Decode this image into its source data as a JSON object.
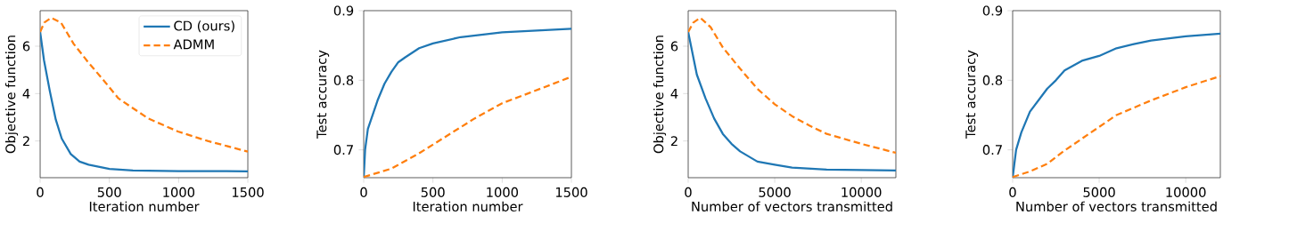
{
  "chart_data": [
    {
      "type": "line",
      "xlabel": "Iteration number",
      "ylabel": "Objective function",
      "xlim": [
        0,
        1500
      ],
      "ylim": [
        0.45,
        7.5
      ],
      "xticks": [
        0,
        500,
        1000,
        1500
      ],
      "yticks": [
        2,
        4,
        6
      ],
      "legend": "top right",
      "grid": false,
      "series": [
        {
          "name": "CD (ours)",
          "color": "#1f77b4",
          "line_style": "solid",
          "x": [
            0,
            28,
            70,
            113,
            156,
            221,
            285,
            350,
            500,
            670,
            1000,
            1500
          ],
          "values": [
            6.6,
            5.4,
            4.1,
            2.9,
            2.1,
            1.45,
            1.13,
            1.0,
            0.82,
            0.75,
            0.73,
            0.72
          ]
        },
        {
          "name": "ADMM",
          "color": "#ff7f0e",
          "line_style": "dashed",
          "x": [
            0,
            30,
            80,
            150,
            242,
            350,
            460,
            565,
            780,
            995,
            1210,
            1500
          ],
          "values": [
            6.6,
            7.0,
            7.2,
            7.0,
            6.1,
            5.3,
            4.55,
            3.8,
            2.95,
            2.4,
            2.0,
            1.55
          ]
        }
      ]
    },
    {
      "type": "line",
      "xlabel": "Iteration number",
      "ylabel": "Test accuracy",
      "xlim": [
        0,
        1500
      ],
      "ylim": [
        0.66,
        0.9
      ],
      "xticks": [
        0,
        500,
        1000,
        1500
      ],
      "yticks": [
        0.7,
        0.8,
        0.9
      ],
      "grid": false,
      "series": [
        {
          "color": "#1f77b4",
          "line_style": "solid",
          "x": [
            0,
            10,
            30,
            100,
            150,
            200,
            250,
            300,
            400,
            500,
            700,
            1000,
            1500
          ],
          "values": [
            0.66,
            0.7,
            0.73,
            0.771,
            0.795,
            0.812,
            0.826,
            0.833,
            0.846,
            0.853,
            0.862,
            0.869,
            0.874
          ]
        },
        {
          "color": "#ff7f0e",
          "line_style": "dashed",
          "x": [
            0,
            200,
            400,
            600,
            800,
            1000,
            1200,
            1500
          ],
          "values": [
            0.661,
            0.673,
            0.695,
            0.72,
            0.745,
            0.767,
            0.782,
            0.805
          ]
        }
      ]
    },
    {
      "type": "line",
      "xlabel": "Number of vectors transmitted",
      "ylabel": "Objective function",
      "xlim": [
        0,
        12000
      ],
      "ylim": [
        0.45,
        7.5
      ],
      "xticks": [
        0,
        5000,
        10000
      ],
      "yticks": [
        2,
        4,
        6
      ],
      "grid": false,
      "series": [
        {
          "color": "#1f77b4",
          "line_style": "solid",
          "x": [
            0,
            500,
            1000,
            1500,
            2000,
            2500,
            3000,
            4000,
            5000,
            6000,
            8000,
            12000
          ],
          "values": [
            6.6,
            4.8,
            3.8,
            2.95,
            2.3,
            1.88,
            1.56,
            1.13,
            1.0,
            0.88,
            0.79,
            0.75
          ]
        },
        {
          "color": "#ff7f0e",
          "line_style": "dashed",
          "x": [
            0,
            300,
            700,
            1300,
            2000,
            3000,
            4000,
            5000,
            6000,
            7000,
            8000,
            10000,
            12000
          ],
          "values": [
            6.6,
            7.0,
            7.2,
            6.8,
            5.95,
            5.05,
            4.2,
            3.55,
            3.05,
            2.65,
            2.3,
            1.88,
            1.5
          ]
        }
      ]
    },
    {
      "type": "line",
      "xlabel": "Number of vectors transmitted",
      "ylabel": "Test accuracy",
      "xlim": [
        0,
        12000
      ],
      "ylim": [
        0.66,
        0.9
      ],
      "xticks": [
        0,
        5000,
        10000
      ],
      "yticks": [
        0.7,
        0.8,
        0.9
      ],
      "grid": false,
      "series": [
        {
          "color": "#1f77b4",
          "line_style": "solid",
          "x": [
            0,
            200,
            500,
            1000,
            2000,
            2500,
            3000,
            4000,
            5000,
            6000,
            7000,
            8000,
            10000,
            12000
          ],
          "values": [
            0.66,
            0.7,
            0.725,
            0.755,
            0.788,
            0.8,
            0.814,
            0.828,
            0.835,
            0.846,
            0.852,
            0.857,
            0.863,
            0.867
          ]
        },
        {
          "color": "#ff7f0e",
          "line_style": "dashed",
          "x": [
            0,
            1000,
            2000,
            3000,
            4000,
            5000,
            6000,
            8000,
            10000,
            12000
          ],
          "values": [
            0.661,
            0.669,
            0.68,
            0.699,
            0.716,
            0.733,
            0.75,
            0.771,
            0.79,
            0.806
          ]
        }
      ]
    }
  ]
}
